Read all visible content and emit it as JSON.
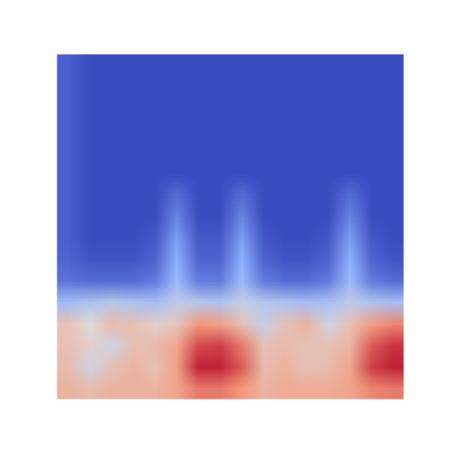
{
  "chart_data": {
    "type": "heatmap",
    "tick_labels": false,
    "color_range": [
      0,
      1
    ],
    "cells": [
      [
        0.05,
        0,
        0,
        0,
        0,
        0,
        0,
        0,
        0,
        0,
        0,
        0,
        0,
        0,
        0,
        0
      ],
      [
        0.05,
        0,
        0,
        0,
        0,
        0,
        0,
        0,
        0,
        0,
        0,
        0,
        0,
        0,
        0,
        0
      ],
      [
        0.05,
        0,
        0,
        0,
        0,
        0,
        0,
        0,
        0,
        0,
        0,
        0,
        0,
        0,
        0,
        0
      ],
      [
        0.05,
        0,
        0,
        0,
        0,
        0,
        0,
        0,
        0,
        0,
        0,
        0,
        0,
        0,
        0,
        0
      ],
      [
        0.05,
        0,
        0,
        0,
        0,
        0,
        0,
        0,
        0,
        0,
        0,
        0,
        0,
        0,
        0,
        0
      ],
      [
        0.05,
        0,
        0,
        0,
        0,
        0,
        0,
        0,
        0,
        0,
        0,
        0,
        0,
        0,
        0,
        0
      ],
      [
        0.05,
        0,
        0,
        0,
        0,
        0.08,
        0,
        0,
        0.08,
        0,
        0,
        0,
        0,
        0.08,
        0,
        0
      ],
      [
        0.05,
        0,
        0,
        0,
        0,
        0.14,
        0,
        0,
        0.14,
        0,
        0,
        0,
        0,
        0.14,
        0,
        0
      ],
      [
        0.05,
        0,
        0,
        0,
        0.03,
        0.2,
        0.03,
        0.03,
        0.2,
        0.03,
        0,
        0,
        0.03,
        0.2,
        0.03,
        0
      ],
      [
        0.06,
        0.02,
        0.02,
        0.02,
        0.06,
        0.25,
        0.06,
        0.06,
        0.25,
        0.06,
        0.02,
        0.02,
        0.06,
        0.25,
        0.06,
        0.02
      ],
      [
        0.1,
        0.08,
        0.08,
        0.08,
        0.12,
        0.3,
        0.12,
        0.12,
        0.3,
        0.12,
        0.08,
        0.08,
        0.12,
        0.3,
        0.12,
        0.08
      ],
      [
        0.32,
        0.35,
        0.38,
        0.35,
        0.33,
        0.4,
        0.38,
        0.36,
        0.42,
        0.38,
        0.35,
        0.33,
        0.34,
        0.4,
        0.35,
        0.33
      ],
      [
        0.6,
        0.5,
        0.62,
        0.6,
        0.55,
        0.58,
        0.75,
        0.72,
        0.6,
        0.42,
        0.6,
        0.65,
        0.45,
        0.6,
        0.72,
        0.78
      ],
      [
        0.6,
        0.55,
        0.45,
        0.6,
        0.62,
        0.7,
        0.88,
        0.9,
        0.8,
        0.6,
        0.62,
        0.6,
        0.6,
        0.65,
        0.85,
        0.92
      ],
      [
        0.62,
        0.45,
        0.6,
        0.65,
        0.6,
        0.72,
        0.95,
        0.95,
        0.85,
        0.62,
        0.65,
        0.6,
        0.62,
        0.7,
        0.9,
        0.95
      ],
      [
        0.65,
        0.62,
        0.65,
        0.65,
        0.65,
        0.7,
        0.8,
        0.8,
        0.75,
        0.65,
        0.68,
        0.68,
        0.68,
        0.7,
        0.78,
        0.8
      ]
    ]
  }
}
